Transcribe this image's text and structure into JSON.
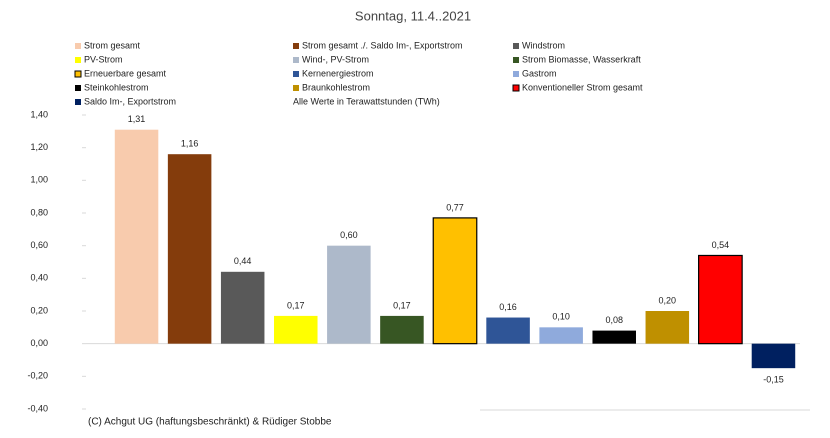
{
  "chart_data": {
    "type": "bar",
    "title": "Sonntag, 11.4..2021",
    "note": "Alle Werte in Terawattstunden (TWh)",
    "footer": "(C) Achgut UG (haftungsbeschränkt) & Rüdiger Stobbe",
    "categories": [
      "Strom gesamt",
      "Strom gesamt ./. Saldo Im-, Exportstrom",
      "Windstrom",
      "PV-Strom",
      "Wind-, PV-Strom",
      "Strom Biomasse, Wasserkraft",
      "Erneuerbare gesamt",
      "Kernenergiestrom",
      "Gastrom",
      "Steinkohlestrom",
      "Braunkohlestrom",
      "Konventioneller Strom gesamt",
      "Saldo Im-, Exportstrom"
    ],
    "values": [
      1.31,
      1.16,
      0.44,
      0.17,
      0.6,
      0.17,
      0.77,
      0.16,
      0.1,
      0.08,
      0.2,
      0.54,
      -0.15
    ],
    "value_labels": [
      "1,31",
      "1,16",
      "0,44",
      "0,17",
      "0,60",
      "0,17",
      "0,77",
      "0,16",
      "0,10",
      "0,08",
      "0,20",
      "0,54",
      "-0,15"
    ],
    "colors": [
      "#f8cbad",
      "#843c0c",
      "#595959",
      "#ffff00",
      "#adb9ca",
      "#375623",
      "#ffc000",
      "#2f5597",
      "#8faadc",
      "#000000",
      "#bf9000",
      "#ff0000",
      "#002060"
    ],
    "outlined": [
      false,
      false,
      false,
      false,
      false,
      false,
      true,
      false,
      false,
      false,
      false,
      true,
      false
    ],
    "ylim": [
      -0.4,
      1.4
    ],
    "yticks": [
      {
        "value": 1.4,
        "label": "1,40"
      },
      {
        "value": 1.2,
        "label": "1,20"
      },
      {
        "value": 1.0,
        "label": "1,00"
      },
      {
        "value": 0.8,
        "label": "0,80"
      },
      {
        "value": 0.6,
        "label": "0,60"
      },
      {
        "value": 0.4,
        "label": "0,40"
      },
      {
        "value": 0.2,
        "label": "0,20"
      },
      {
        "value": 0,
        "label": "0,00"
      },
      {
        "value": -0.2,
        "label": "-0,20"
      },
      {
        "value": -0.4,
        "label": "-0,40"
      }
    ]
  }
}
